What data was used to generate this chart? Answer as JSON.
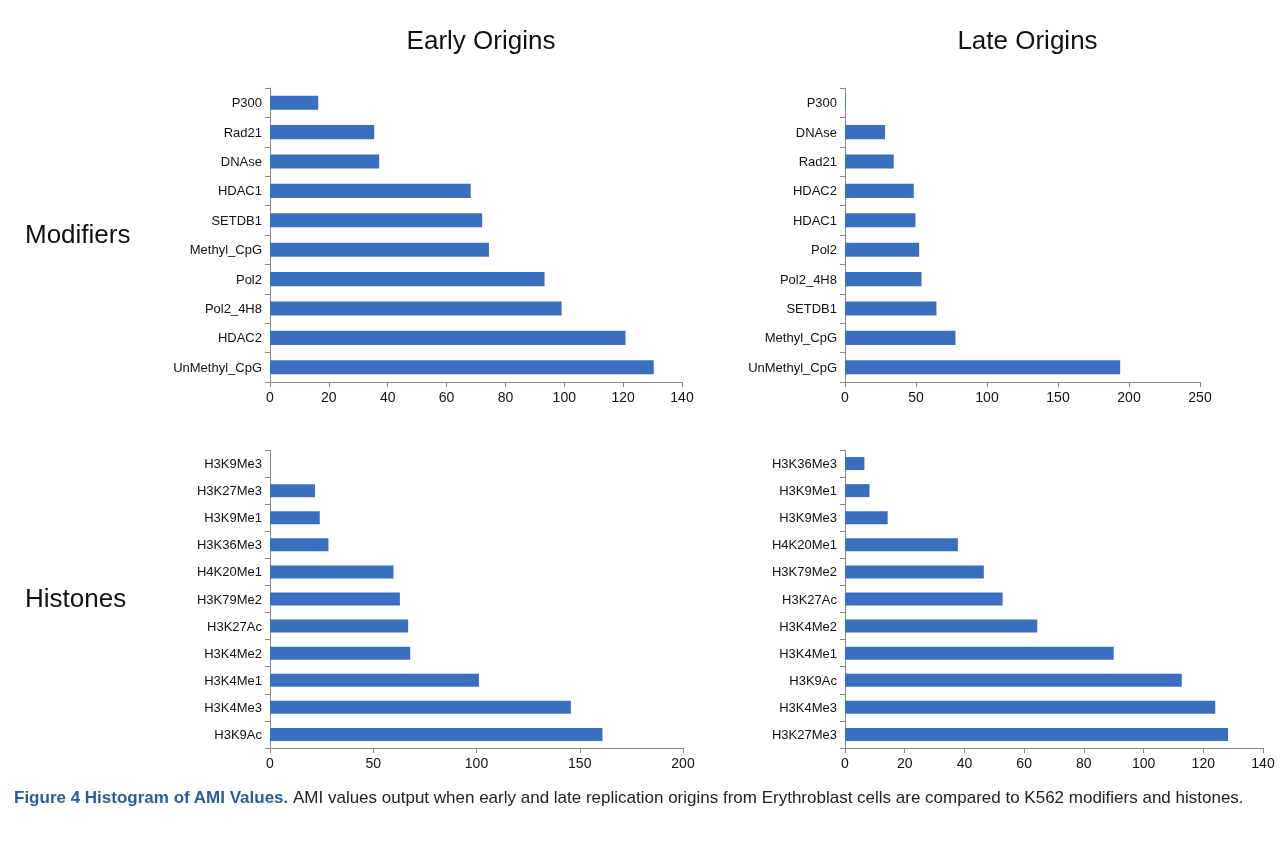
{
  "chart_data": [
    {
      "type": "bar",
      "orientation": "horizontal",
      "title": "Early Origins",
      "ylabel": "Modifiers",
      "categories": [
        "P300",
        "Rad21",
        "DNAse",
        "HDAC1",
        "SETDB1",
        "Methyl_CpG",
        "Pol2",
        "Pol2_4H8",
        "HDAC2",
        "UnMethyl_CpG"
      ],
      "values": [
        16.4,
        35.4,
        37.1,
        68.2,
        72.1,
        74.4,
        93.3,
        99.1,
        120.8,
        130.4
      ],
      "color": "#3a6fbf",
      "xlim": [
        0,
        140
      ],
      "xticks": [
        0,
        20,
        40,
        60,
        80,
        100,
        120,
        140
      ]
    },
    {
      "type": "bar",
      "orientation": "horizontal",
      "title": "Late Origins",
      "categories": [
        "P300",
        "DNAse",
        "Rad21",
        "HDAC2",
        "HDAC1",
        "Pol2",
        "Pol2_4H8",
        "SETDB1",
        "Methyl_CpG",
        "UnMethyl_CpG"
      ],
      "values": [
        0.5,
        28.2,
        34.3,
        48.4,
        49.6,
        52.2,
        53.9,
        64.4,
        77.8,
        193.8
      ],
      "color": "#3a6fbf",
      "xlim": [
        0,
        250
      ],
      "xticks": [
        0,
        50,
        100,
        150,
        200,
        250
      ]
    },
    {
      "type": "bar",
      "orientation": "horizontal",
      "ylabel": "Histones",
      "categories": [
        "H3K9Me3",
        "H3K27Me3",
        "H3K9Me1",
        "H3K36Me3",
        "H4K20Me1",
        "H3K79Me2",
        "H3K27Ac",
        "H3K4Me2",
        "H3K4Me1",
        "H3K4Me3",
        "H3K9Ac"
      ],
      "values": [
        0,
        21.8,
        24.1,
        28.3,
        59.8,
        62.9,
        66.9,
        67.9,
        101.2,
        145.7,
        161.0
      ],
      "color": "#3a6fbf",
      "xlim": [
        0,
        200
      ],
      "xticks": [
        0,
        50,
        100,
        150,
        200
      ]
    },
    {
      "type": "bar",
      "orientation": "horizontal",
      "categories": [
        "H3K36Me3",
        "H3K9Me1",
        "H3K9Me3",
        "H4K20Me1",
        "H3K79Me2",
        "H3K27Ac",
        "H3K4Me2",
        "H3K4Me1",
        "H3K9Ac",
        "H3K4Me3",
        "H3K27Me3"
      ],
      "values": [
        6.5,
        8.2,
        14.3,
        37.8,
        46.5,
        52.8,
        64.4,
        90.0,
        112.8,
        124.0,
        128.3
      ],
      "color": "#3a6fbf",
      "xlim": [
        0,
        140
      ],
      "xticks": [
        0,
        20,
        40,
        60,
        80,
        100,
        120,
        140
      ],
      "annotations": [
        "Figure 4 Histogram of AMI Values.",
        "AMI values output when early and late replication origins from Erythroblast cells are compared to K562 modifiers and histones."
      ]
    }
  ]
}
